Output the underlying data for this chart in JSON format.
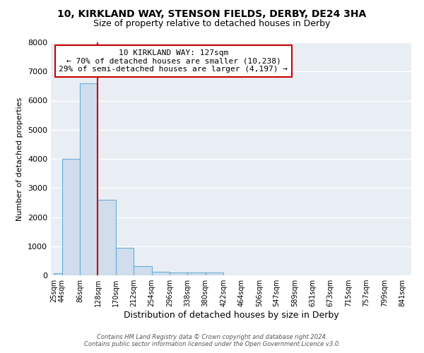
{
  "title1": "10, KIRKLAND WAY, STENSON FIELDS, DERBY, DE24 3HA",
  "title2": "Size of property relative to detached houses in Derby",
  "xlabel": "Distribution of detached houses by size in Derby",
  "ylabel": "Number of detached properties",
  "bar_left_edges": [
    25,
    44,
    86,
    128,
    170,
    212,
    254,
    296,
    338,
    380,
    422,
    464,
    506,
    547,
    589,
    631,
    673,
    715,
    757,
    799
  ],
  "bar_widths": [
    19,
    42,
    42,
    42,
    42,
    42,
    42,
    42,
    42,
    42,
    42,
    42,
    41,
    42,
    42,
    42,
    42,
    42,
    42,
    42
  ],
  "bar_heights": [
    80,
    4000,
    6600,
    2600,
    950,
    310,
    130,
    100,
    100,
    100,
    0,
    0,
    0,
    0,
    0,
    0,
    0,
    0,
    0,
    0
  ],
  "bar_color": "#cfdded",
  "bar_edge_color": "#6aaed6",
  "tick_labels": [
    "25sqm",
    "44sqm",
    "86sqm",
    "128sqm",
    "170sqm",
    "212sqm",
    "254sqm",
    "296sqm",
    "338sqm",
    "380sqm",
    "422sqm",
    "464sqm",
    "506sqm",
    "547sqm",
    "589sqm",
    "631sqm",
    "673sqm",
    "715sqm",
    "757sqm",
    "799sqm",
    "841sqm"
  ],
  "tick_positions": [
    25,
    44,
    86,
    128,
    170,
    212,
    254,
    296,
    338,
    380,
    422,
    464,
    506,
    547,
    589,
    631,
    673,
    715,
    757,
    799,
    841
  ],
  "ylim": [
    0,
    8000
  ],
  "xlim": [
    18,
    862
  ],
  "red_line_x": 127,
  "annotation_title": "10 KIRKLAND WAY: 127sqm",
  "annotation_line1": "← 70% of detached houses are smaller (10,238)",
  "annotation_line2": "29% of semi-detached houses are larger (4,197) →",
  "background_color": "#e8eef4",
  "fig_background_color": "#ffffff",
  "grid_color": "#ffffff",
  "footer_line1": "Contains HM Land Registry data © Crown copyright and database right 2024.",
  "footer_line2": "Contains public sector information licensed under the Open Government Licence v3.0."
}
